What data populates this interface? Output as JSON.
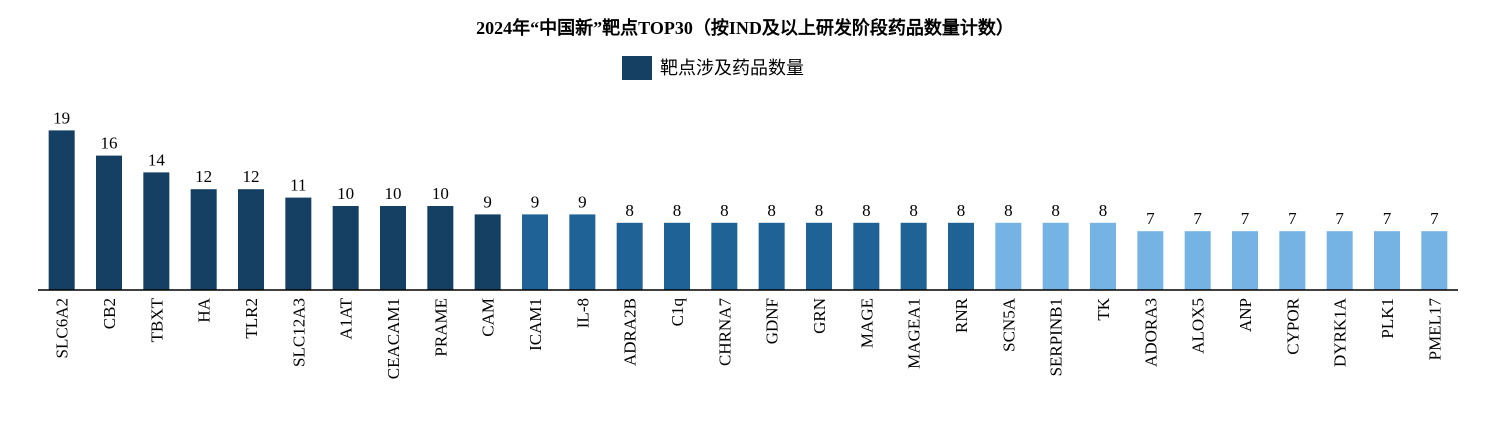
{
  "chart_data": {
    "type": "bar",
    "title": "2024年“中国新”靶点TOP30（按IND及以上研发阶段药品数量计数）",
    "categories": [
      "SLC6A2",
      "CB2",
      "TBXT",
      "HA",
      "TLR2",
      "SLC12A3",
      "A1AT",
      "CEACAM1",
      "PRAME",
      "CAM",
      "ICAM1",
      "IL-8",
      "ADRA2B",
      "C1q",
      "CHRNA7",
      "GDNF",
      "GRN",
      "MAGE",
      "MAGEA1",
      "RNR",
      "SCN5A",
      "SERPINB1",
      "TK",
      "ADORA3",
      "ALOX5",
      "ANP",
      "CYPOR",
      "DYRK1A",
      "PLK1",
      "PMEL17"
    ],
    "series": [
      {
        "name": "靶点涉及药品数量",
        "color": "#153f63",
        "values": [
          19,
          16,
          14,
          12,
          12,
          11,
          10,
          10,
          10,
          9,
          9,
          9,
          8,
          8,
          8,
          8,
          8,
          8,
          8,
          8,
          8,
          8,
          8,
          7,
          7,
          7,
          7,
          7,
          7,
          7
        ]
      }
    ],
    "bar_colors": [
      "#153f63",
      "#153f63",
      "#153f63",
      "#153f63",
      "#153f63",
      "#153f63",
      "#153f63",
      "#153f63",
      "#153f63",
      "#153f63",
      "#1f6296",
      "#1f6296",
      "#1f6296",
      "#1f6296",
      "#1f6296",
      "#1f6296",
      "#1f6296",
      "#1f6296",
      "#1f6296",
      "#1f6296",
      "#74b3e3",
      "#74b3e3",
      "#74b3e3",
      "#74b3e3",
      "#74b3e3",
      "#74b3e3",
      "#74b3e3",
      "#74b3e3",
      "#74b3e3",
      "#74b3e3"
    ],
    "label_colors": [
      "#000000",
      "#b0234b",
      "#000000",
      "#000000",
      "#000000",
      "#000000",
      "#000000",
      "#000000",
      "#000000",
      "#000000",
      "#000000",
      "#b0234b",
      "#000000",
      "#000000",
      "#000000",
      "#000000",
      "#000000",
      "#000000",
      "#000000",
      "#000000",
      "#000000",
      "#000000",
      "#000000",
      "#000000",
      "#000000",
      "#000000",
      "#000000",
      "#000000",
      "#b0234b",
      "#000000"
    ],
    "ylim": [
      0,
      20
    ],
    "legend": "top"
  }
}
